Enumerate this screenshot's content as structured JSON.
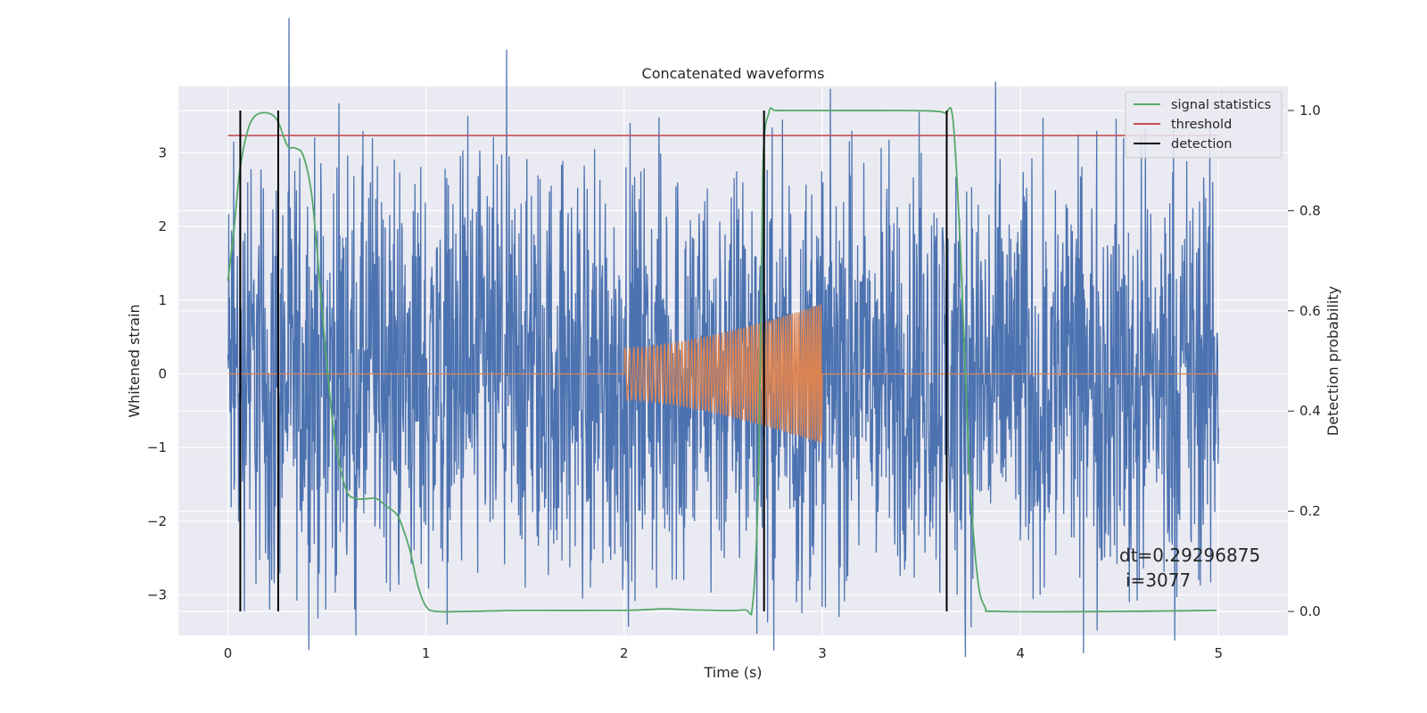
{
  "chart_data": {
    "type": "line",
    "title": "Concatenated waveforms",
    "xlabel": "Time (s)",
    "ylabel": "Whitened strain",
    "y2label": "Detection probability",
    "xlim": [
      -0.25,
      5.35
    ],
    "ylim": [
      -3.55,
      3.9
    ],
    "y2lim": [
      -0.048,
      1.048
    ],
    "xticks": [
      0,
      1,
      2,
      3,
      4,
      5
    ],
    "xtick_labels": [
      "0",
      "1",
      "2",
      "3",
      "4",
      "5"
    ],
    "yticks": [
      -3,
      -2,
      -1,
      0,
      1,
      2,
      3
    ],
    "ytick_labels": [
      "−3",
      "−2",
      "−1",
      "0",
      "1",
      "2",
      "3"
    ],
    "y2ticks": [
      0.0,
      0.2,
      0.4,
      0.6,
      0.8,
      1.0
    ],
    "y2tick_labels": [
      "0.0",
      "0.2",
      "0.4",
      "0.6",
      "0.8",
      "1.0"
    ],
    "grid": true,
    "legend_position": "top-right",
    "series": [
      {
        "name": "",
        "axis": "left",
        "color": "#4c72b0",
        "description_visible": "dense noise series",
        "x_range": [
          0,
          5
        ],
        "peaks": [
          [
            0.03,
            3.15
          ],
          [
            0.1,
            2.6
          ],
          [
            0.22,
            2.3
          ],
          [
            0.55,
            2.8
          ],
          [
            0.73,
            3.2
          ],
          [
            1.21,
            3.5
          ],
          [
            1.85,
            3.05
          ],
          [
            2.3,
            3.0
          ],
          [
            2.6,
            2.6
          ],
          [
            2.7,
            2.7
          ],
          [
            3.15,
            3.3
          ],
          [
            3.5,
            3.0
          ],
          [
            4.23,
            2.3
          ],
          [
            4.52,
            3.2
          ],
          [
            4.95,
            2.0
          ]
        ],
        "troughs": [
          [
            0.22,
            -2.8
          ],
          [
            0.21,
            -3.2
          ],
          [
            0.64,
            -3.2
          ],
          [
            1.26,
            -2.7
          ],
          [
            1.5,
            -2.9
          ],
          [
            1.83,
            -2.9
          ],
          [
            2.3,
            -2.8
          ],
          [
            2.75,
            -2.8
          ],
          [
            2.87,
            -3.1
          ],
          [
            2.88,
            -2.5
          ],
          [
            3.68,
            -3.0
          ],
          [
            4.1,
            -3.0
          ],
          [
            4.55,
            -3.1
          ],
          [
            4.6,
            -2.8
          ],
          [
            4.9,
            -2.8
          ]
        ],
        "envelope_abs": 2.1
      },
      {
        "name": "",
        "axis": "left",
        "color": "#dd8452",
        "baseline": 0,
        "chirp_x_range": [
          2,
          3
        ],
        "chirp_amplitude": [
          0.35,
          0.95
        ]
      },
      {
        "name": "signal statistics",
        "axis": "right",
        "color": "#55a868",
        "x": [
          0,
          0.03,
          0.06,
          0.1,
          0.14,
          0.2,
          0.25,
          0.3,
          0.34,
          0.38,
          0.42,
          0.45,
          0.48,
          0.52,
          0.55,
          0.6,
          0.65,
          0.7,
          0.75,
          0.8,
          0.85,
          0.88,
          0.92,
          0.96,
          1.0,
          1.05,
          1.2,
          1.5,
          2.0,
          2.2,
          2.35,
          2.6,
          2.65,
          2.68,
          2.7,
          2.73,
          2.76,
          2.8,
          3.0,
          3.4,
          3.55,
          3.62,
          3.66,
          3.7,
          3.74,
          3.78,
          3.82,
          3.9,
          4.5,
          4.99
        ],
        "values": [
          0.66,
          0.76,
          0.88,
          0.96,
          0.99,
          0.995,
          0.98,
          0.93,
          0.925,
          0.91,
          0.84,
          0.72,
          0.58,
          0.41,
          0.32,
          0.24,
          0.225,
          0.225,
          0.225,
          0.21,
          0.195,
          0.17,
          0.12,
          0.05,
          0.01,
          0.0,
          0.0,
          0.002,
          0.002,
          0.005,
          0.003,
          0.003,
          0.02,
          0.3,
          0.88,
          0.995,
          1.0,
          1.0,
          1.0,
          1.0,
          0.999,
          0.995,
          0.98,
          0.7,
          0.3,
          0.08,
          0.01,
          0.0,
          0.0,
          0.002
        ]
      },
      {
        "name": "threshold",
        "axis": "right",
        "color": "#c44e52",
        "x": [
          0,
          5
        ],
        "values": [
          0.95,
          0.95
        ]
      },
      {
        "name": "detection",
        "axis": "right",
        "color": "#000000",
        "x": [
          0.0625,
          0.254,
          2.706,
          3.628
        ]
      }
    ],
    "annotations": [
      "dt=0.29296875",
      "i=3077"
    ]
  }
}
